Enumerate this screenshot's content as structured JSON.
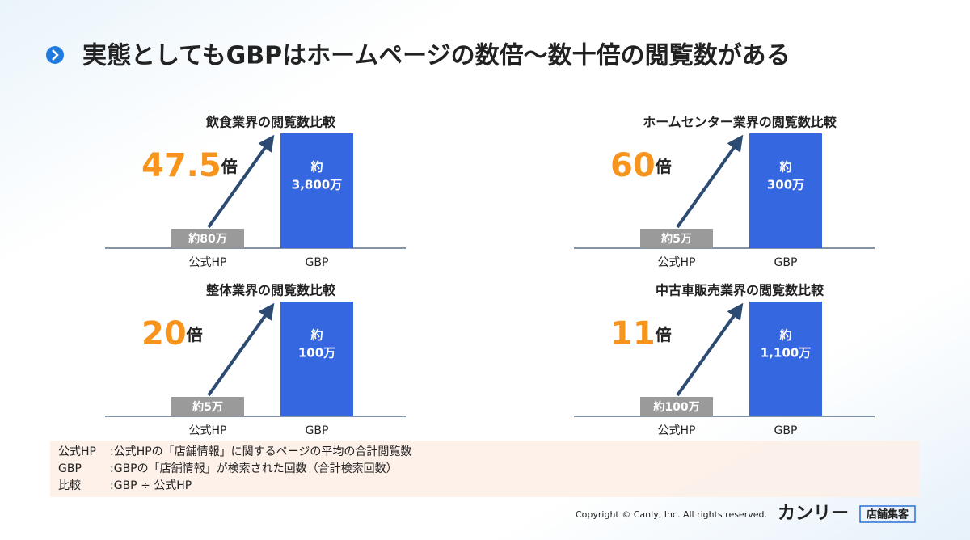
{
  "title": "実態としてもGBPはホームページの数倍〜数十倍の閲覧数がある",
  "panels": [
    {
      "title": "飲食業界の閲覧数比較",
      "ratio": "47.5",
      "ratio_unit": "倍",
      "hp_label": "約80万",
      "gbp_label": [
        "約",
        "3,800万"
      ],
      "categories": [
        "公式HP",
        "GBP"
      ]
    },
    {
      "title": "ホームセンター業界の閲覧数比較",
      "ratio": "60",
      "ratio_unit": "倍",
      "hp_label": "約5万",
      "gbp_label": [
        "約",
        "300万"
      ],
      "categories": [
        "公式HP",
        "GBP"
      ]
    },
    {
      "title": "整体業界の閲覧数比較",
      "ratio": "20",
      "ratio_unit": "倍",
      "hp_label": "約5万",
      "gbp_label": [
        "約",
        "100万"
      ],
      "categories": [
        "公式HP",
        "GBP"
      ]
    },
    {
      "title": "中古車販売業界の閲覧数比較",
      "ratio": "11",
      "ratio_unit": "倍",
      "hp_label": "約100万",
      "gbp_label": [
        "約",
        "1,100万"
      ],
      "categories": [
        "公式HP",
        "GBP"
      ]
    }
  ],
  "notes": [
    [
      "公式HP",
      ":公式HPの「店舗情報」に関するページの平均の合計閲覧数"
    ],
    [
      "GBP",
      ":GBPの「店舗情報」が検索された回数（合計検索回数）"
    ],
    [
      "比較",
      ":GBP ÷ 公式HP"
    ]
  ],
  "copyright": "Copyright © Canly, Inc. All rights reserved.",
  "logo": {
    "brand": "カンリー",
    "tag": "店舗集客"
  }
}
